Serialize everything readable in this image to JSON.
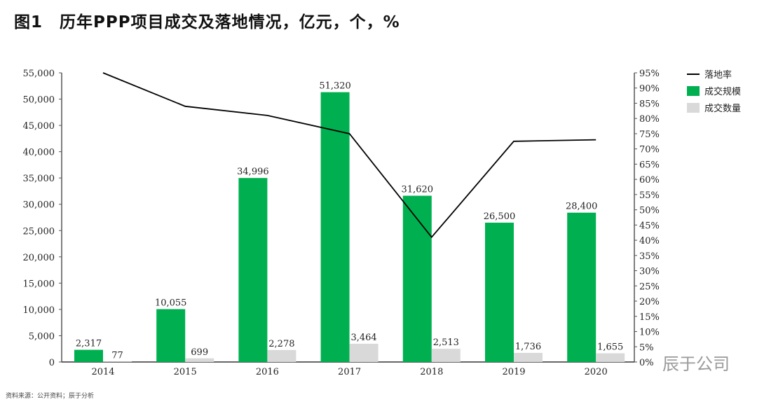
{
  "title": "图1　历年PPP项目成交及落地情况，亿元，个，%",
  "source": "资料来源：公开资料；辰于分析",
  "watermark": "辰于公司",
  "chart_data": {
    "type": "bar+line",
    "categories": [
      "2014",
      "2015",
      "2016",
      "2017",
      "2018",
      "2019",
      "2020"
    ],
    "series": [
      {
        "name": "成交规模",
        "type": "bar",
        "axis": "left",
        "color": "#00b050",
        "values": [
          2317,
          10055,
          34996,
          51320,
          31620,
          26500,
          28400
        ],
        "labels": [
          "2,317",
          "10,055",
          "34,996",
          "51,320",
          "31,620",
          "26,500",
          "28,400"
        ]
      },
      {
        "name": "成交数量",
        "type": "bar",
        "axis": "left",
        "color": "#d9d9d9",
        "values": [
          77,
          699,
          2278,
          3464,
          2513,
          1736,
          1655
        ],
        "labels": [
          "77",
          "699",
          "2,278",
          "3,464",
          "2,513",
          "1,736",
          "1,655"
        ]
      },
      {
        "name": "落地率",
        "type": "line",
        "axis": "right",
        "color": "#000000",
        "values": [
          95,
          84,
          81,
          75,
          41,
          72.5,
          73
        ]
      }
    ],
    "left_axis": {
      "ylim": [
        0,
        55000
      ],
      "ticks": [
        "0",
        "5,000",
        "10,000",
        "15,000",
        "20,000",
        "25,000",
        "30,000",
        "35,000",
        "40,000",
        "45,000",
        "50,000",
        "55,000"
      ]
    },
    "right_axis": {
      "ylim": [
        0,
        95
      ],
      "ticks": [
        "0%",
        "5%",
        "10%",
        "15%",
        "20%",
        "25%",
        "30%",
        "35%",
        "40%",
        "45%",
        "50%",
        "55%",
        "60%",
        "65%",
        "70%",
        "75%",
        "80%",
        "85%",
        "90%",
        "95%"
      ]
    },
    "legend": "top-right",
    "grid": false
  }
}
